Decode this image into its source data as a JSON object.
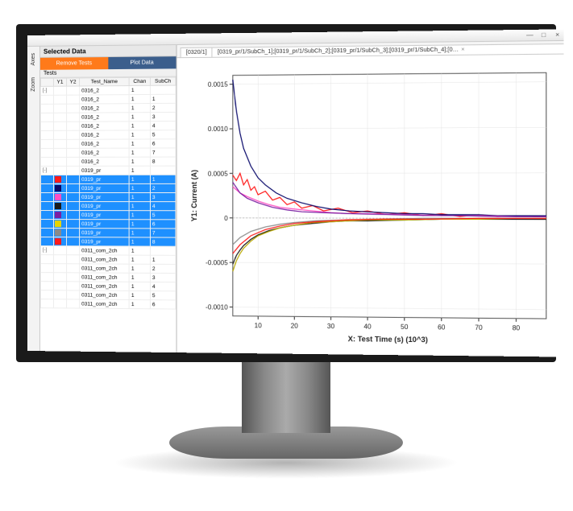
{
  "window": {
    "minimize": "—",
    "maximize": "□",
    "close": "×"
  },
  "sideTabs": [
    "Axes",
    "Zoom"
  ],
  "panel": {
    "title": "Selected Data",
    "removeBtn": "Remove Tests",
    "plotBtn": "Plot Data",
    "testsLabel": "Tests"
  },
  "table": {
    "columns": [
      "",
      "Y1",
      "Y2",
      "Test_Name",
      "Chan",
      "SubCh"
    ],
    "rows": [
      {
        "exp": "[-]",
        "color": null,
        "name": "0316_2",
        "chan": "1",
        "sub": "",
        "sel": false
      },
      {
        "exp": "",
        "color": null,
        "name": "0316_2",
        "chan": "1",
        "sub": "1",
        "sel": false
      },
      {
        "exp": "",
        "color": null,
        "name": "0316_2",
        "chan": "1",
        "sub": "2",
        "sel": false
      },
      {
        "exp": "",
        "color": null,
        "name": "0316_2",
        "chan": "1",
        "sub": "3",
        "sel": false
      },
      {
        "exp": "",
        "color": null,
        "name": "0316_2",
        "chan": "1",
        "sub": "4",
        "sel": false
      },
      {
        "exp": "",
        "color": null,
        "name": "0316_2",
        "chan": "1",
        "sub": "5",
        "sel": false
      },
      {
        "exp": "",
        "color": null,
        "name": "0316_2",
        "chan": "1",
        "sub": "6",
        "sel": false
      },
      {
        "exp": "",
        "color": null,
        "name": "0316_2",
        "chan": "1",
        "sub": "7",
        "sel": false
      },
      {
        "exp": "",
        "color": null,
        "name": "0316_2",
        "chan": "1",
        "sub": "8",
        "sel": false
      },
      {
        "exp": "[-]",
        "color": null,
        "name": "0319_pr",
        "chan": "1",
        "sub": "",
        "sel": false
      },
      {
        "exp": "",
        "color": "#ff1a1a",
        "name": "0319_pr",
        "chan": "1",
        "sub": "1",
        "sel": true
      },
      {
        "exp": "",
        "color": "#0a0a6b",
        "name": "0319_pr",
        "chan": "1",
        "sub": "2",
        "sel": true
      },
      {
        "exp": "",
        "color": "#ff4fc3",
        "name": "0319_pr",
        "chan": "1",
        "sub": "3",
        "sel": true
      },
      {
        "exp": "",
        "color": "#1a1a1a",
        "name": "0319_pr",
        "chan": "1",
        "sub": "4",
        "sel": true
      },
      {
        "exp": "",
        "color": "#7a1fa2",
        "name": "0319_pr",
        "chan": "1",
        "sub": "5",
        "sel": true
      },
      {
        "exp": "",
        "color": "#e6d400",
        "name": "0319_pr",
        "chan": "1",
        "sub": "6",
        "sel": true
      },
      {
        "exp": "",
        "color": "#8a8a8a",
        "name": "0319_pr",
        "chan": "1",
        "sub": "7",
        "sel": true
      },
      {
        "exp": "",
        "color": "#ff1a1a",
        "name": "0319_pr",
        "chan": "1",
        "sub": "8",
        "sel": true
      },
      {
        "exp": "[-]",
        "color": null,
        "name": "0311_com_2ch",
        "chan": "1",
        "sub": "",
        "sel": false
      },
      {
        "exp": "",
        "color": null,
        "name": "0311_com_2ch",
        "chan": "1",
        "sub": "1",
        "sel": false
      },
      {
        "exp": "",
        "color": null,
        "name": "0311_com_2ch",
        "chan": "1",
        "sub": "2",
        "sel": false
      },
      {
        "exp": "",
        "color": null,
        "name": "0311_com_2ch",
        "chan": "1",
        "sub": "3",
        "sel": false
      },
      {
        "exp": "",
        "color": null,
        "name": "0311_com_2ch",
        "chan": "1",
        "sub": "4",
        "sel": false
      },
      {
        "exp": "",
        "color": null,
        "name": "0311_com_2ch",
        "chan": "1",
        "sub": "5",
        "sel": false
      },
      {
        "exp": "",
        "color": null,
        "name": "0311_com_2ch",
        "chan": "1",
        "sub": "6",
        "sel": false
      }
    ]
  },
  "tabs": [
    {
      "label": "[0320/1]"
    },
    {
      "label": "[0319_pr/1/SubCh_1];[0319_pr/1/SubCh_2];[0319_pr/1/SubCh_3];[0319_pr/1/SubCh_4];[0…",
      "closable": true
    }
  ],
  "chart": {
    "type": "line",
    "xlabel": "X: Test Time (s) (10^3)",
    "ylabel": "Y1: Current (A)",
    "xlim": [
      3,
      88
    ],
    "ylim": [
      -0.0011,
      0.0016
    ],
    "xticks": [
      10,
      20,
      30,
      40,
      50,
      60,
      70,
      80
    ],
    "yticks": [
      -0.001,
      -0.0005,
      0,
      0.0005,
      0.001,
      0.0015
    ],
    "ytick_labels": [
      "-0.0010",
      "-0.0005",
      "0",
      "0.0005",
      "0.0010",
      "0.0015"
    ],
    "background_color": "#ffffff",
    "grid_color": "#e4e4e4",
    "zero_color": "#aaaaaa",
    "border_color": "#555555",
    "series": [
      {
        "name": "SubCh_1",
        "color": "#ff1a1a",
        "width": 1.2,
        "points": [
          [
            3,
            0.00048
          ],
          [
            4,
            0.00042
          ],
          [
            5,
            0.0005
          ],
          [
            6,
            0.00037
          ],
          [
            7,
            0.00043
          ],
          [
            8,
            0.00031
          ],
          [
            9,
            0.00035
          ],
          [
            10,
            0.00026
          ],
          [
            12,
            0.0003
          ],
          [
            14,
            0.0002
          ],
          [
            16,
            0.00023
          ],
          [
            18,
            0.00015
          ],
          [
            20,
            0.00018
          ],
          [
            22,
            0.00011
          ],
          [
            25,
            0.00014
          ],
          [
            28,
            8e-05
          ],
          [
            32,
            0.00011
          ],
          [
            36,
            6e-05
          ],
          [
            40,
            8e-05
          ],
          [
            45,
            4e-05
          ],
          [
            50,
            6e-05
          ],
          [
            55,
            3e-05
          ],
          [
            60,
            5e-05
          ],
          [
            65,
            2e-05
          ],
          [
            70,
            4e-05
          ],
          [
            75,
            2e-05
          ],
          [
            80,
            3e-05
          ],
          [
            85,
            2e-05
          ],
          [
            88,
            2e-05
          ]
        ]
      },
      {
        "name": "SubCh_2",
        "color": "#0a0a6b",
        "width": 1.2,
        "points": [
          [
            3,
            0.00155
          ],
          [
            4,
            0.0012
          ],
          [
            5,
            0.00095
          ],
          [
            6,
            0.00078
          ],
          [
            8,
            0.00058
          ],
          [
            10,
            0.00045
          ],
          [
            12,
            0.00037
          ],
          [
            15,
            0.00028
          ],
          [
            18,
            0.00022
          ],
          [
            22,
            0.00017
          ],
          [
            26,
            0.00013
          ],
          [
            30,
            0.0001
          ],
          [
            35,
            8e-05
          ],
          [
            40,
            7e-05
          ],
          [
            45,
            6e-05
          ],
          [
            50,
            5e-05
          ],
          [
            55,
            5e-05
          ],
          [
            60,
            4e-05
          ],
          [
            65,
            4e-05
          ],
          [
            70,
            4e-05
          ],
          [
            75,
            3e-05
          ],
          [
            80,
            3e-05
          ],
          [
            85,
            3e-05
          ],
          [
            88,
            3e-05
          ]
        ]
      },
      {
        "name": "SubCh_3",
        "color": "#ff4fc3",
        "width": 1.2,
        "points": [
          [
            3,
            0.00035
          ],
          [
            5,
            0.00028
          ],
          [
            7,
            0.00024
          ],
          [
            10,
            0.00019
          ],
          [
            13,
            0.00015
          ],
          [
            16,
            0.00012
          ],
          [
            20,
            0.0001
          ],
          [
            25,
            8e-05
          ],
          [
            30,
            6e-05
          ],
          [
            35,
            5e-05
          ],
          [
            40,
            5e-05
          ],
          [
            50,
            4e-05
          ],
          [
            60,
            3e-05
          ],
          [
            70,
            3e-05
          ],
          [
            80,
            2e-05
          ],
          [
            88,
            2e-05
          ]
        ]
      },
      {
        "name": "SubCh_4",
        "color": "#1a1a1a",
        "width": 1.2,
        "points": [
          [
            3,
            -0.00052
          ],
          [
            4,
            -0.00042
          ],
          [
            5,
            -0.00036
          ],
          [
            6,
            -0.00031
          ],
          [
            8,
            -0.00024
          ],
          [
            10,
            -0.00019
          ],
          [
            13,
            -0.00014
          ],
          [
            16,
            -0.00011
          ],
          [
            20,
            -8e-05
          ],
          [
            25,
            -6e-05
          ],
          [
            30,
            -4e-05
          ],
          [
            35,
            -3e-05
          ],
          [
            40,
            -3e-05
          ],
          [
            50,
            -2e-05
          ],
          [
            60,
            -1e-05
          ],
          [
            70,
            -1e-05
          ],
          [
            80,
            -1e-05
          ],
          [
            88,
            -1e-05
          ]
        ]
      },
      {
        "name": "SubCh_5",
        "color": "#7a1fa2",
        "width": 1.2,
        "points": [
          [
            3,
            0.0004
          ],
          [
            5,
            0.00028
          ],
          [
            7,
            0.00022
          ],
          [
            10,
            0.00017
          ],
          [
            14,
            0.00012
          ],
          [
            18,
            9e-05
          ],
          [
            22,
            7e-05
          ],
          [
            28,
            6e-05
          ],
          [
            35,
            5e-05
          ],
          [
            45,
            4e-05
          ],
          [
            55,
            3e-05
          ],
          [
            65,
            3e-05
          ],
          [
            75,
            2e-05
          ],
          [
            88,
            2e-05
          ]
        ]
      },
      {
        "name": "SubCh_6",
        "color": "#b8a800",
        "width": 1.2,
        "points": [
          [
            3,
            -0.0006
          ],
          [
            4,
            -0.00048
          ],
          [
            5,
            -0.0004
          ],
          [
            6,
            -0.00034
          ],
          [
            8,
            -0.00026
          ],
          [
            10,
            -0.0002
          ],
          [
            13,
            -0.00015
          ],
          [
            16,
            -0.00011
          ],
          [
            20,
            -8e-05
          ],
          [
            25,
            -5e-05
          ],
          [
            30,
            -4e-05
          ],
          [
            35,
            -3e-05
          ],
          [
            40,
            -2e-05
          ],
          [
            50,
            -2e-05
          ],
          [
            60,
            -1e-05
          ],
          [
            70,
            -1e-05
          ],
          [
            80,
            0.0
          ],
          [
            88,
            0.0
          ]
        ]
      },
      {
        "name": "SubCh_7",
        "color": "#8a8a8a",
        "width": 1.0,
        "points": [
          [
            3,
            -0.0003
          ],
          [
            5,
            -0.00022
          ],
          [
            8,
            -0.00015
          ],
          [
            12,
            -0.0001
          ],
          [
            16,
            -7e-05
          ],
          [
            20,
            -5e-05
          ],
          [
            26,
            -3e-05
          ],
          [
            34,
            -2e-05
          ],
          [
            44,
            -1e-05
          ],
          [
            55,
            0.0
          ],
          [
            70,
            0.0
          ],
          [
            88,
            0.0
          ]
        ]
      },
      {
        "name": "SubCh_8",
        "color": "#ff1a1a",
        "width": 1.0,
        "points": [
          [
            3,
            -0.0004
          ],
          [
            5,
            -0.0003
          ],
          [
            8,
            -0.0002
          ],
          [
            12,
            -0.00013
          ],
          [
            16,
            -9e-05
          ],
          [
            20,
            -6e-05
          ],
          [
            26,
            -4e-05
          ],
          [
            34,
            -2e-05
          ],
          [
            44,
            -1e-05
          ],
          [
            55,
            -1e-05
          ],
          [
            70,
            0.0
          ],
          [
            88,
            0.0
          ]
        ]
      }
    ]
  }
}
